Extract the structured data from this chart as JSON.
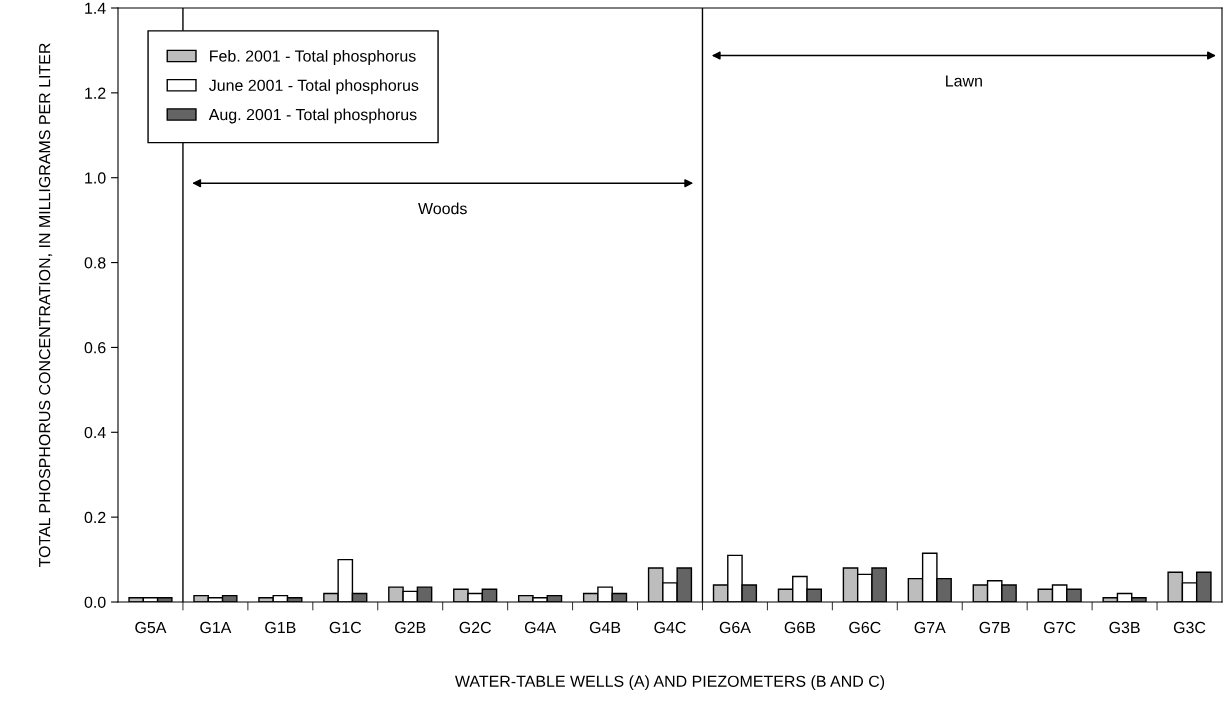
{
  "chart_data": {
    "type": "bar",
    "xlabel": "WATER-TABLE WELLS (A) AND PIEZOMETERS (B AND C)",
    "ylabel": "TOTAL PHOSPHORUS CONCENTRATION, IN MILLIGRAMS PER LITER",
    "categories": [
      "G5A",
      "G1A",
      "G1B",
      "G1C",
      "G2B",
      "G2C",
      "G4A",
      "G4B",
      "G4C",
      "G6A",
      "G6B",
      "G6C",
      "G7A",
      "G7B",
      "G7C",
      "G3B",
      "G3C"
    ],
    "series": [
      {
        "name": "Feb. 2001 - Total phosphorus",
        "color": "#bdbdbd",
        "values": [
          0.01,
          0.015,
          0.01,
          0.02,
          0.035,
          0.03,
          0.015,
          0.02,
          0.08,
          0.04,
          0.03,
          0.08,
          0.055,
          0.04,
          0.03,
          0.01,
          0.07
        ]
      },
      {
        "name": "June 2001 - Total phosphorus",
        "color": "#ffffff",
        "values": [
          0.01,
          0.01,
          0.015,
          0.1,
          0.025,
          0.02,
          0.01,
          0.035,
          0.045,
          0.11,
          0.06,
          0.065,
          0.115,
          0.05,
          0.04,
          0.02,
          0.045
        ]
      },
      {
        "name": "Aug. 2001 - Total phosphorus",
        "color": "#646464",
        "values": [
          0.01,
          0.015,
          0.01,
          0.02,
          0.035,
          0.03,
          0.015,
          0.02,
          0.08,
          0.04,
          0.03,
          0.08,
          0.055,
          0.04,
          0.03,
          0.01,
          0.07
        ]
      }
    ],
    "ylim": [
      0,
      1.4
    ],
    "yticks": [
      {
        "value": 0,
        "label": "0.0"
      },
      {
        "value": 0.2,
        "label": "0.2"
      },
      {
        "value": 0.4,
        "label": "0.4"
      },
      {
        "value": 0.6,
        "label": "0.6"
      },
      {
        "value": 0.8,
        "label": "0.8"
      },
      {
        "value": 1.0,
        "label": "1.0"
      },
      {
        "value": 1.2,
        "label": "1.2"
      },
      {
        "value": 1.4,
        "label": "1.4"
      }
    ],
    "annotations": [
      "Woods",
      "Lawn"
    ],
    "legend": "top left",
    "grid": false
  }
}
